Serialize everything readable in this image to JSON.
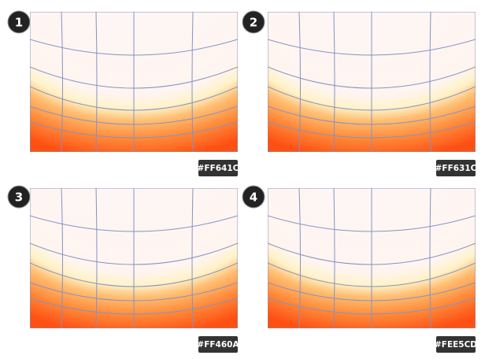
{
  "panels": [
    {
      "number": "1",
      "color_label": "#FF641C"
    },
    {
      "number": "2",
      "color_label": "#FF631C"
    },
    {
      "number": "3",
      "color_label": "#FF460A"
    },
    {
      "number": "4",
      "color_label": "#FEE5CD"
    }
  ]
}
